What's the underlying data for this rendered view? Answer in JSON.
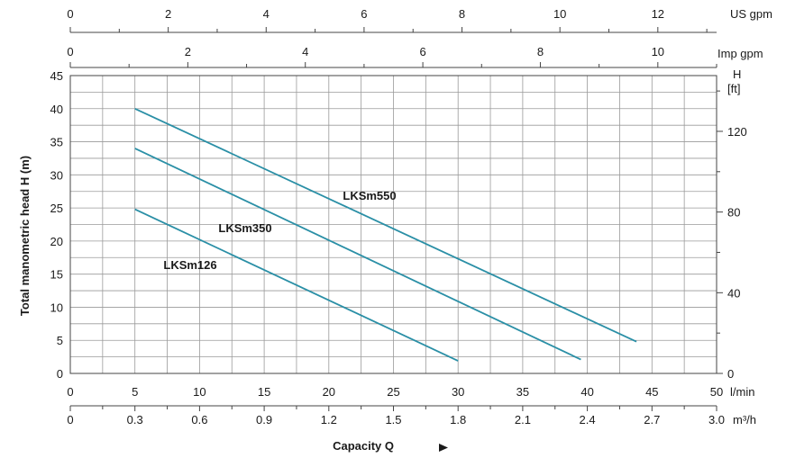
{
  "chart_data": {
    "type": "line",
    "title": "",
    "xlabel": "Capacity Q",
    "ylabel": "Total manometric head H (m)",
    "xlim": [
      0,
      50
    ],
    "ylim": [
      0,
      45
    ],
    "grid": true,
    "x_unit": "l/min",
    "x_ticks": [
      0,
      5,
      10,
      15,
      20,
      25,
      30,
      35,
      40,
      45,
      50
    ],
    "y_ticks": [
      0,
      5,
      10,
      15,
      20,
      25,
      30,
      35,
      40,
      45
    ],
    "series": [
      {
        "name": "LKSm550",
        "color": "#2a8fa6",
        "x": [
          5,
          43.8
        ],
        "y": [
          40,
          4.8
        ]
      },
      {
        "name": "LKSm350",
        "color": "#2a8fa6",
        "x": [
          5,
          39.5
        ],
        "y": [
          34,
          2.1
        ]
      },
      {
        "name": "LKSm126",
        "color": "#2a8fa6",
        "x": [
          5,
          30
        ],
        "y": [
          24.8,
          1.9
        ]
      }
    ],
    "secondary_axes": {
      "us_gpm": {
        "label": "US gpm",
        "ticks": [
          "0",
          "2",
          "4",
          "6",
          "8",
          "10",
          "12"
        ],
        "max": 13.2
      },
      "imp_gpm": {
        "label": "Imp gpm",
        "ticks": [
          "0",
          "2",
          "4",
          "6",
          "8",
          "10"
        ],
        "max": 11
      },
      "m3h": {
        "label": "m³/h",
        "ticks": [
          "0",
          "0.3",
          "0.6",
          "0.9",
          "1.2",
          "1.5",
          "1.8",
          "2.1",
          "2.4",
          "2.7",
          "3.0"
        ],
        "max": 3.0
      },
      "ft": {
        "label_line1": "H",
        "label_line2": "[ft]",
        "ticks": [
          "0",
          "40",
          "80",
          "120"
        ],
        "max_m": 45
      }
    }
  }
}
